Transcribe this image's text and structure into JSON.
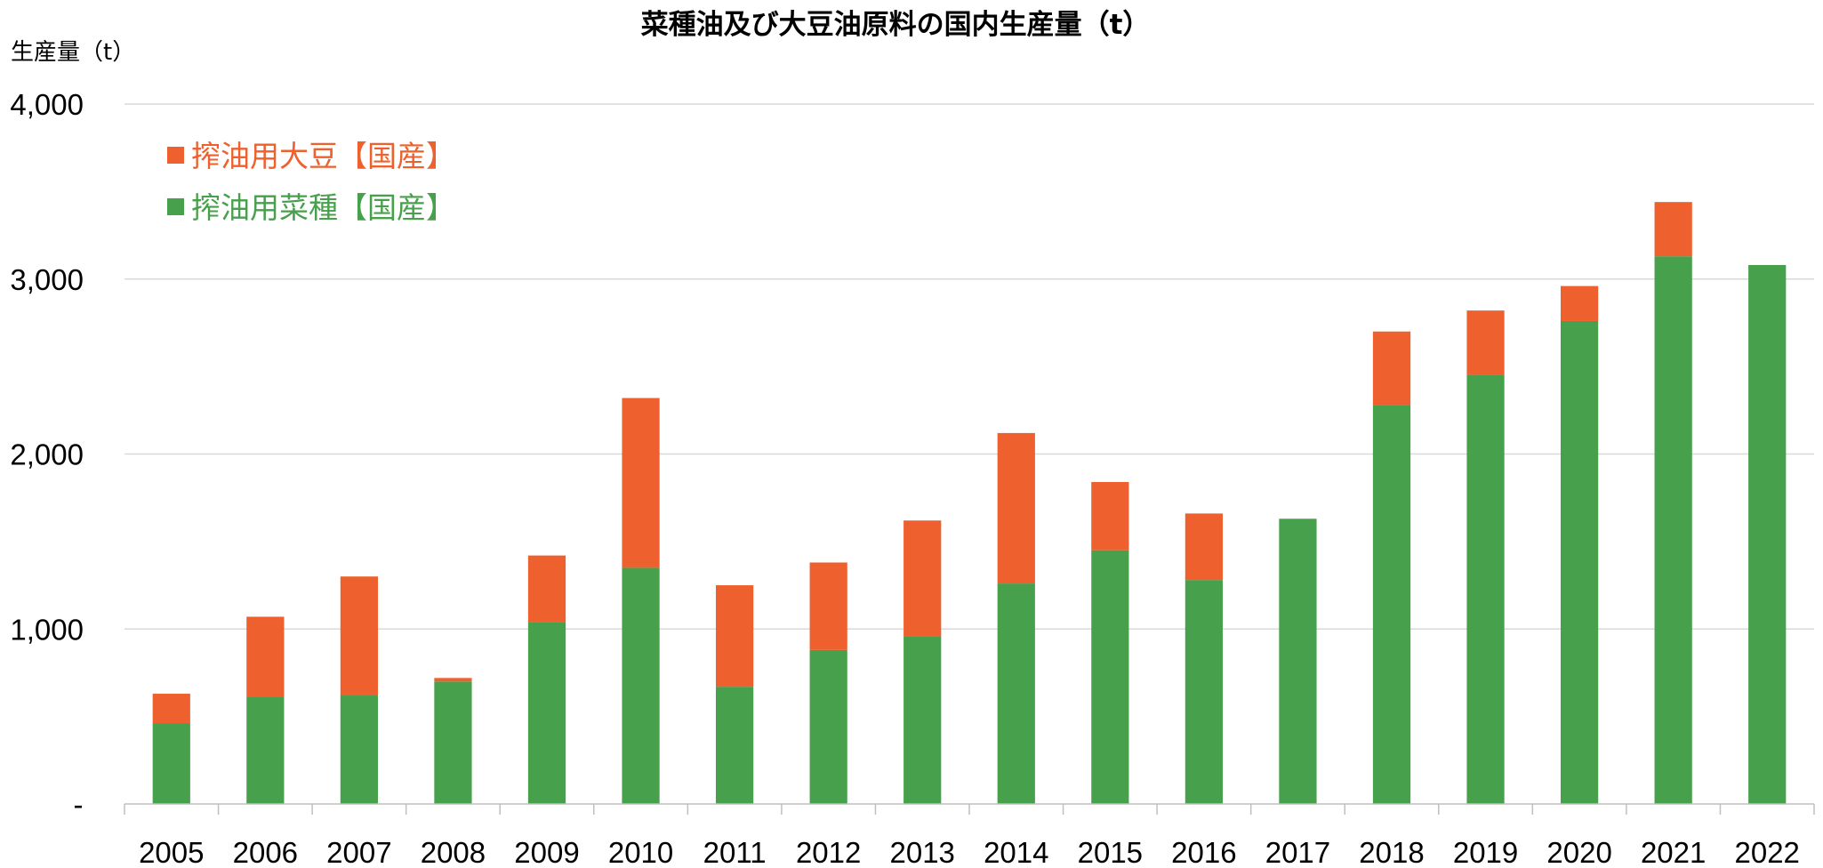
{
  "chart_data": {
    "type": "bar",
    "stacked": true,
    "title": "菜種油及び大豆油原料の国内生産量（t）",
    "ylabel": "生産量（t）",
    "xlabel": "",
    "ylim": [
      0,
      4000
    ],
    "yticks": [
      0,
      1000,
      2000,
      3000,
      4000
    ],
    "ytick_labels": [
      "-",
      "1,000",
      "2,000",
      "3,000",
      "4,000"
    ],
    "grid": true,
    "legend_position": "top-left",
    "categories": [
      "2005",
      "2006",
      "2007",
      "2008",
      "2009",
      "2010",
      "2011",
      "2012",
      "2013",
      "2014",
      "2015",
      "2016",
      "2017",
      "2018",
      "2019",
      "2020",
      "2021",
      "2022"
    ],
    "series": [
      {
        "name": "搾油用菜種【国産】",
        "color": "#47A04B",
        "values": [
          460,
          610,
          620,
          700,
          1040,
          1350,
          670,
          880,
          960,
          1260,
          1450,
          1280,
          1630,
          2280,
          2450,
          2760,
          3130,
          3080
        ]
      },
      {
        "name": "搾油用大豆【国産】",
        "color": "#EE602D",
        "values": [
          170,
          460,
          680,
          20,
          380,
          970,
          580,
          500,
          660,
          860,
          390,
          380,
          0,
          420,
          370,
          200,
          310,
          0
        ]
      }
    ]
  }
}
